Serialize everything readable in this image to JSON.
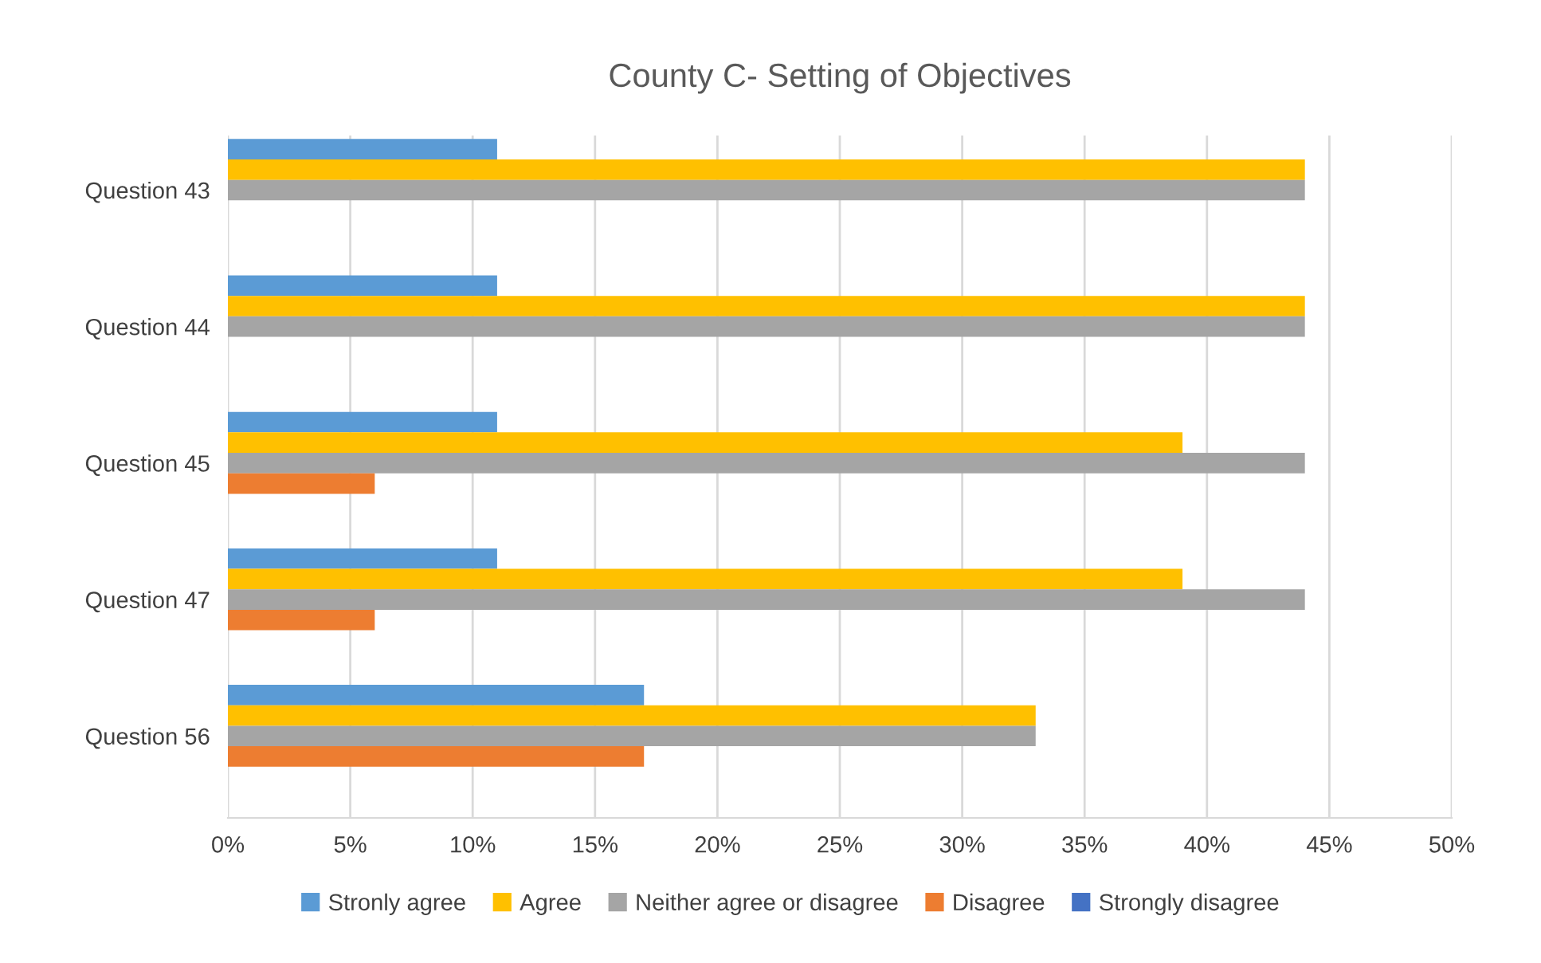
{
  "chart_data": {
    "type": "bar",
    "orientation": "horizontal",
    "title": "County C- Setting of Objectives",
    "categories": [
      "Question 43",
      "Question 44",
      "Question 45",
      "Question 47",
      "Question 56"
    ],
    "series": [
      {
        "name": "Stronly agree",
        "color": "#5b9bd5",
        "values": [
          11,
          11,
          11,
          11,
          17
        ]
      },
      {
        "name": "Agree",
        "color": "#ffc000",
        "values": [
          44,
          44,
          39,
          39,
          33
        ]
      },
      {
        "name": "Neither agree or disagree",
        "color": "#a5a5a5",
        "values": [
          44,
          44,
          44,
          44,
          33
        ]
      },
      {
        "name": "Disagree",
        "color": "#ed7d31",
        "values": [
          0,
          0,
          6,
          6,
          17
        ]
      },
      {
        "name": "Strongly disagree",
        "color": "#4472c4",
        "values": [
          0,
          0,
          0,
          0,
          0
        ]
      }
    ],
    "xlim": [
      0,
      50
    ],
    "xticks": [
      {
        "value": 0,
        "label": "0%"
      },
      {
        "value": 5,
        "label": "5%"
      },
      {
        "value": 10,
        "label": "10%"
      },
      {
        "value": 15,
        "label": "15%"
      },
      {
        "value": 20,
        "label": "20%"
      },
      {
        "value": 25,
        "label": "25%"
      },
      {
        "value": 30,
        "label": "30%"
      },
      {
        "value": 35,
        "label": "35%"
      },
      {
        "value": 40,
        "label": "40%"
      },
      {
        "value": 45,
        "label": "45%"
      },
      {
        "value": 50,
        "label": "50%"
      }
    ],
    "grid": "x",
    "legend": "bottom"
  }
}
